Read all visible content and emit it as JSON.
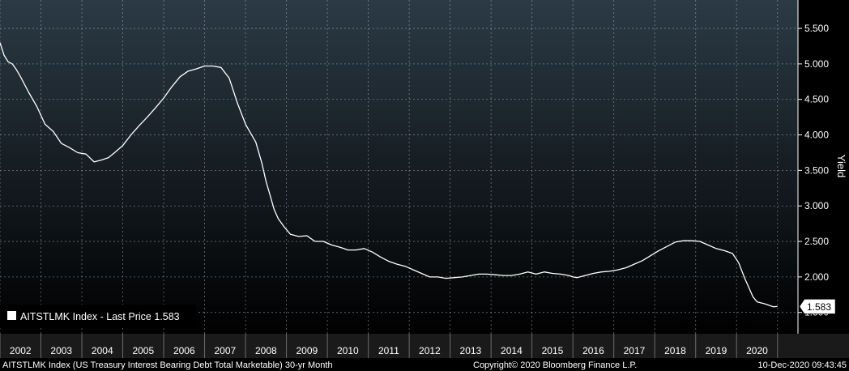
{
  "colors": {
    "background_top": "#2b3a45",
    "background_bottom": "#000000",
    "line": "#ffffff",
    "grid": "#bfbfbf",
    "axis_band": "#1a1a1a"
  },
  "legend": {
    "label": "AITSTLMK Index - Last Price 1.583"
  },
  "last_value_tag": "1.583",
  "footer": {
    "left": "AITSTLMK Index (US Treasury Interest Bearing Debt Total Marketable) 30-yr  Month",
    "center": "Copyright© 2020 Bloomberg Finance L.P.",
    "right": "10-Dec-2020 09:43:45"
  },
  "chart_data": {
    "type": "line",
    "ylabel": "Yield",
    "ylim": [
      1.2,
      5.9
    ],
    "yticks": [
      "5.500",
      "5.000",
      "4.500",
      "4.000",
      "3.500",
      "3.000",
      "2.500",
      "2.000",
      "1.500"
    ],
    "ytick_values": [
      5.5,
      5.0,
      4.5,
      4.0,
      3.5,
      3.0,
      2.5,
      2.0,
      1.5
    ],
    "x_tick_labels": [
      "2002",
      "2003",
      "2004",
      "2005",
      "2006",
      "2007",
      "2008",
      "2009",
      "2010",
      "2011",
      "2012",
      "2013",
      "2014",
      "2015",
      "2016",
      "2017",
      "2018",
      "2019",
      "2020"
    ],
    "xlim": [
      2001.5,
      2021.0
    ],
    "grid": true,
    "legend_position": "bottom-left",
    "series": [
      {
        "name": "AITSTLMK Index - Last Price",
        "x": [
          2001.5,
          2001.6,
          2001.7,
          2001.8,
          2001.9,
          2002.0,
          2002.2,
          2002.4,
          2002.6,
          2002.8,
          2003.0,
          2003.2,
          2003.4,
          2003.6,
          2003.8,
          2004.0,
          2004.15,
          2004.3,
          2004.5,
          2004.7,
          2004.9,
          2005.1,
          2005.3,
          2005.5,
          2005.7,
          2005.9,
          2006.1,
          2006.3,
          2006.5,
          2006.7,
          2006.9,
          2007.1,
          2007.3,
          2007.5,
          2007.6,
          2007.75,
          2007.9,
          2008.0,
          2008.1,
          2008.2,
          2008.3,
          2008.45,
          2008.6,
          2008.8,
          2009.0,
          2009.2,
          2009.4,
          2009.6,
          2009.8,
          2009.9,
          2010.0,
          2010.2,
          2010.4,
          2010.6,
          2010.8,
          2011.0,
          2011.2,
          2011.4,
          2011.6,
          2011.8,
          2012.0,
          2012.2,
          2012.4,
          2012.6,
          2012.8,
          2013.0,
          2013.2,
          2013.4,
          2013.6,
          2013.8,
          2014.0,
          2014.2,
          2014.4,
          2014.6,
          2014.8,
          2015.0,
          2015.2,
          2015.4,
          2015.5,
          2015.6,
          2015.8,
          2016.0,
          2016.2,
          2016.4,
          2016.6,
          2016.8,
          2017.0,
          2017.2,
          2017.4,
          2017.6,
          2017.8,
          2018.0,
          2018.2,
          2018.4,
          2018.6,
          2018.8,
          2019.0,
          2019.2,
          2019.4,
          2019.55,
          2019.7,
          2019.8,
          2019.9,
          2020.0,
          2020.2,
          2020.4,
          2020.5
        ],
        "values": [
          5.3,
          5.12,
          5.03,
          5.0,
          4.92,
          4.82,
          4.6,
          4.4,
          4.15,
          4.05,
          3.88,
          3.82,
          3.75,
          3.73,
          3.62,
          3.65,
          3.68,
          3.75,
          3.85,
          4.0,
          4.13,
          4.25,
          4.38,
          4.52,
          4.68,
          4.82,
          4.9,
          4.93,
          4.97,
          4.97,
          4.95,
          4.8,
          4.45,
          4.15,
          4.05,
          3.9,
          3.6,
          3.35,
          3.15,
          2.95,
          2.82,
          2.7,
          2.6,
          2.57,
          2.58,
          2.5,
          2.5,
          2.45,
          2.42,
          2.4,
          2.38,
          2.38,
          2.4,
          2.35,
          2.28,
          2.22,
          2.18,
          2.15,
          2.1,
          2.05,
          2.0,
          2.0,
          1.98,
          1.99,
          2.0,
          2.02,
          2.04,
          2.04,
          2.03,
          2.02,
          2.02,
          2.04,
          2.07,
          2.04,
          2.07,
          2.05,
          2.04,
          2.02,
          2.0,
          1.99,
          2.02,
          2.05,
          2.07,
          2.08,
          2.1,
          2.13,
          2.18,
          2.23,
          2.3,
          2.37,
          2.43,
          2.49,
          2.51,
          2.51,
          2.5,
          2.45,
          2.4,
          2.37,
          2.33,
          2.2,
          1.98,
          1.85,
          1.72,
          1.65,
          1.62,
          1.58,
          1.583
        ]
      }
    ]
  }
}
